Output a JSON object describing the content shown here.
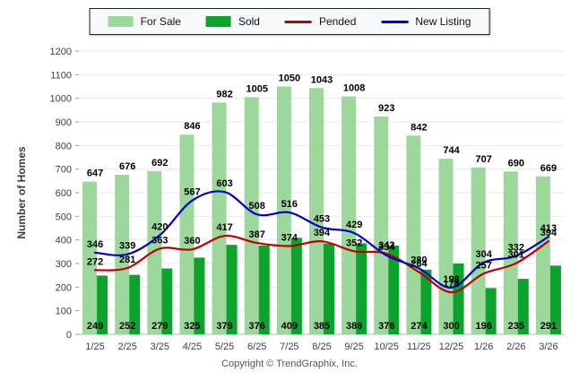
{
  "legend": {
    "items": [
      {
        "label": "For Sale",
        "swatch": "bar",
        "color": "#9cd89c"
      },
      {
        "label": "Sold",
        "swatch": "bar",
        "color": "#0ba32b"
      },
      {
        "label": "Pended",
        "swatch": "line",
        "color": "#c00000"
      },
      {
        "label": "New Listing",
        "swatch": "line",
        "color": "#0000cc"
      }
    ]
  },
  "chart_data": {
    "type": "bar",
    "title": "",
    "categories": [
      "1/25",
      "2/25",
      "3/25",
      "4/25",
      "5/25",
      "6/25",
      "7/25",
      "8/25",
      "9/25",
      "10/25",
      "11/25",
      "12/25",
      "1/26",
      "2/26",
      "3/26"
    ],
    "series": [
      {
        "name": "For Sale",
        "render": "bar",
        "color": "#9cd89c",
        "values": [
          647,
          676,
          692,
          846,
          982,
          1005,
          1050,
          1043,
          1008,
          923,
          842,
          744,
          707,
          690,
          669
        ]
      },
      {
        "name": "Sold",
        "render": "bar",
        "color": "#0ba32b",
        "values": [
          249,
          252,
          279,
          325,
          379,
          376,
          409,
          385,
          386,
          376,
          274,
          300,
          196,
          235,
          291
        ]
      },
      {
        "name": "Pended",
        "render": "line",
        "color": "#c00000",
        "values": [
          272,
          281,
          363,
          360,
          417,
          387,
          374,
          394,
          352,
          342,
          264,
          178,
          257,
          301,
          394
        ]
      },
      {
        "name": "New Listing",
        "render": "line",
        "color": "#0000cc",
        "values": [
          346,
          339,
          420,
          567,
          603,
          508,
          516,
          453,
          429,
          334,
          280,
          198,
          304,
          332,
          413
        ]
      }
    ],
    "xlabel": "",
    "ylabel": "Number of Homes",
    "ylim": [
      0,
      1200
    ],
    "ytick_step": 100,
    "grid": true,
    "legend_position": "top-center"
  },
  "footer": {
    "copyright": "Copyright © TrendGraphix, Inc."
  },
  "colors": {
    "grid": "#e9e9e9",
    "axis": "#b3b3b3",
    "tick_text": "#3d3d46",
    "value_label": "#000000"
  }
}
